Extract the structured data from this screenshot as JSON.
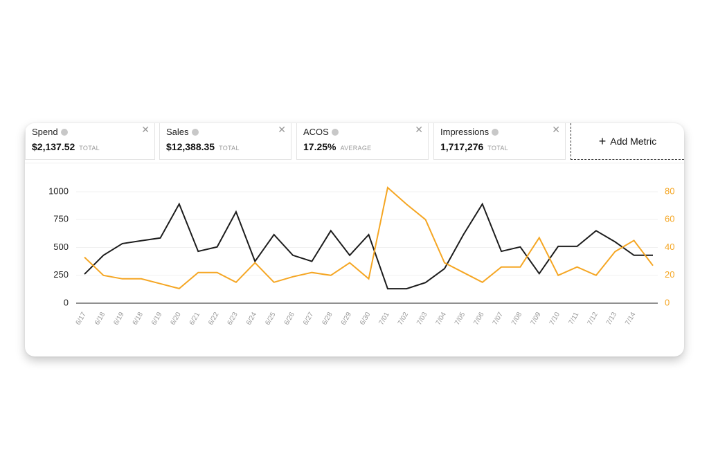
{
  "metrics": [
    {
      "name": "Spend",
      "value": "$2,137.52",
      "qualifier": "TOTAL"
    },
    {
      "name": "Sales",
      "value": "$12,388.35",
      "qualifier": "TOTAL"
    },
    {
      "name": "ACOS",
      "value": "17.25%",
      "qualifier": "AVERAGE"
    },
    {
      "name": "Impressions",
      "value": "1,717,276",
      "qualifier": "TOTAL"
    }
  ],
  "add_metric": "Add Metric",
  "chart_data": {
    "type": "line",
    "categories": [
      "6/17",
      "6/18",
      "6/19",
      "6/18",
      "6/19",
      "6/20",
      "6/21",
      "6/22",
      "6/23",
      "6/24",
      "6/25",
      "6/26",
      "6/27",
      "6/28",
      "6/29",
      "6/30",
      "7/01",
      "7/02",
      "7/03",
      "7/04",
      "7/05",
      "7/06",
      "7/07",
      "7/08",
      "7/09",
      "7/10",
      "7/11",
      "7/12",
      "7/13",
      "7/14",
      null
    ],
    "series": [
      {
        "color": "#1c1c1c",
        "values": [
          260,
          430,
          535,
          560,
          585,
          890,
          465,
          505,
          820,
          375,
          615,
          430,
          375,
          650,
          430,
          615,
          130,
          130,
          185,
          310,
          615,
          890,
          465,
          505,
          265,
          510,
          510,
          650,
          550,
          430,
          430
        ]
      },
      {
        "color": "#f5a623",
        "axis": "y2",
        "values": [
          33,
          20,
          17.5,
          17.5,
          14,
          10.5,
          22,
          22,
          15,
          29,
          15,
          19,
          22,
          20,
          29,
          17.5,
          83,
          71,
          60,
          29,
          22,
          15,
          26,
          26,
          47,
          20,
          26,
          20,
          37,
          45,
          27
        ]
      }
    ],
    "ylim": [
      0,
      1000
    ],
    "yticks": [
      0,
      250,
      500,
      750,
      1000
    ],
    "y2lim": [
      0,
      80
    ],
    "y2ticks": [
      0,
      20,
      40,
      60,
      80
    ],
    "y2_color": "#f5a623",
    "grid": true
  }
}
